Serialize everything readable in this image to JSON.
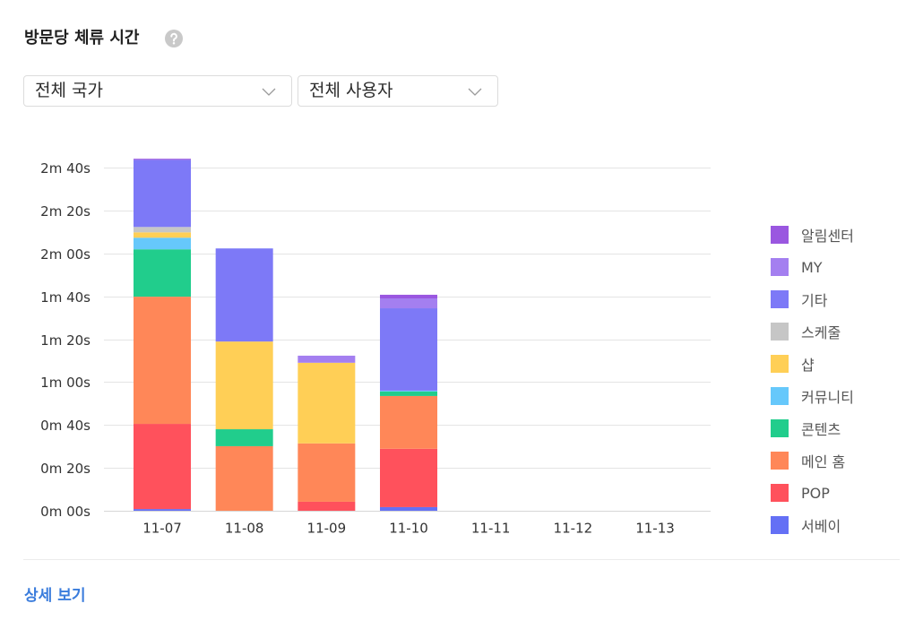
{
  "card": {
    "help_icon": "question-circle-icon",
    "filters": [
      {
        "value": "전체 국가",
        "icon": "chevron-down-icon"
      },
      {
        "value": "전체 사용자",
        "icon": "chevron-down-icon"
      }
    ],
    "detail_link": "상세 보기",
    "accent_color": "#3a7cdc"
  },
  "chart_data": {
    "type": "bar",
    "stacked": true,
    "title": "방문당 체류 시간",
    "categories": [
      "11-07",
      "11-08",
      "11-09",
      "11-10",
      "11-11",
      "11-12",
      "11-13"
    ],
    "ylim": [
      0,
      160
    ],
    "yticks": [
      0,
      20,
      40,
      60,
      80,
      100,
      120,
      140,
      160
    ],
    "ytick_labels": [
      "0m 00s",
      "0m 20s",
      "0m 40s",
      "1m 00s",
      "1m 20s",
      "1m 40s",
      "2m 00s",
      "2m 20s",
      "2m 40s"
    ],
    "grid": true,
    "legend_position": "right",
    "series": [
      {
        "name": "알림센터",
        "color": "#9a57e0",
        "values": [
          0.5,
          0,
          0,
          1.7,
          0,
          0,
          0
        ]
      },
      {
        "name": "MY",
        "color": "#a47ff0",
        "values": [
          0,
          0,
          3.3,
          4.6,
          0,
          0,
          0
        ]
      },
      {
        "name": "기타",
        "color": "#7d79f7",
        "values": [
          31.3,
          43.4,
          0,
          38.4,
          0,
          0,
          0
        ]
      },
      {
        "name": "스케줄",
        "color": "#c6c6c6",
        "values": [
          2.5,
          0,
          0,
          0,
          0,
          0,
          0
        ]
      },
      {
        "name": "샵",
        "color": "#ffcf56",
        "values": [
          2.5,
          40.9,
          37.6,
          0,
          0,
          0,
          0
        ]
      },
      {
        "name": "커뮤니티",
        "color": "#66c8fb",
        "values": [
          5.4,
          0,
          0,
          0.4,
          0,
          0,
          0
        ]
      },
      {
        "name": "콘텐츠",
        "color": "#21cd8c",
        "values": [
          22.1,
          7.9,
          0,
          2.1,
          0,
          0,
          0
        ]
      },
      {
        "name": "메인 홈",
        "color": "#ff8758",
        "values": [
          59.3,
          30.1,
          27.2,
          24.6,
          0,
          0,
          0
        ]
      },
      {
        "name": "POP",
        "color": "#ff515c",
        "values": [
          39.7,
          0,
          4.2,
          27.2,
          0,
          0,
          0
        ]
      },
      {
        "name": "서베이",
        "color": "#6470f5",
        "values": [
          0.8,
          0,
          0,
          1.7,
          0,
          0,
          0
        ]
      }
    ]
  }
}
